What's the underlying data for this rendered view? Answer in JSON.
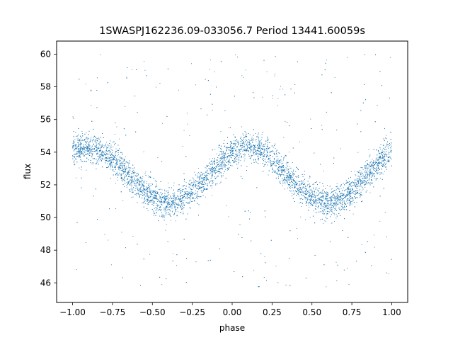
{
  "chart_data": {
    "type": "scatter",
    "title": "1SWASPJ162236.09-033056.7 Period 13441.60059s",
    "xlabel": "phase",
    "ylabel": "flux",
    "xlim": [
      -1.1,
      1.1
    ],
    "ylim": [
      44.8,
      60.8
    ],
    "xticks": [
      -1.0,
      -0.75,
      -0.5,
      -0.25,
      0.0,
      0.25,
      0.5,
      0.75,
      1.0
    ],
    "xtick_labels": [
      "−1.00",
      "−0.75",
      "−0.50",
      "−0.25",
      "0.00",
      "0.25",
      "0.50",
      "0.75",
      "1.00"
    ],
    "yticks": [
      46,
      48,
      50,
      52,
      54,
      56,
      58,
      60
    ],
    "ytick_labels": [
      "46",
      "48",
      "50",
      "52",
      "54",
      "56",
      "58",
      "60"
    ],
    "grid": false,
    "legend": "none",
    "point_color": "#1f77b4",
    "model": {
      "description_free": true,
      "mean_flux": 52.6,
      "amplitude": 1.7,
      "peak_phases": [
        -0.9,
        0.1
      ],
      "band_sigma": 0.45,
      "outlier_range": [
        45.6,
        60.0
      ],
      "phase_range": [
        -1.0,
        1.0
      ]
    }
  }
}
